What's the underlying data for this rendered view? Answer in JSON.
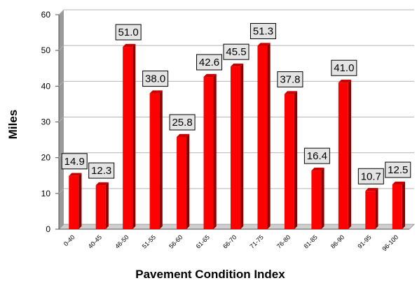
{
  "chart_data": {
    "type": "bar",
    "title": "",
    "xlabel": "Pavement Condition Index",
    "ylabel": "Miles",
    "ylim": [
      0,
      60
    ],
    "yticks": [
      0,
      10,
      20,
      30,
      40,
      50,
      60
    ],
    "grid": true,
    "legend": "none",
    "style": "3d",
    "categories": [
      "0-40",
      "40-45",
      "46-50",
      "51-55",
      "56-60",
      "61-65",
      "66-70",
      "71-75",
      "76-80",
      "81-85",
      "86-90",
      "91-95",
      "96-100"
    ],
    "values": [
      14.9,
      12.3,
      51.0,
      38.0,
      25.8,
      42.6,
      45.5,
      51.3,
      37.8,
      16.4,
      41.0,
      10.7,
      12.5
    ],
    "data_labels": [
      "14.9",
      "12.3",
      "51.0",
      "38.0",
      "25.8",
      "42.6",
      "45.5",
      "51.3",
      "37.8",
      "16.4",
      "41.0",
      "10.7",
      "12.5"
    ],
    "colors": {
      "bar_front": "#ff0000",
      "bar_side": "#8c0000",
      "bar_top": "#c80000",
      "wall": "#9a9a9a",
      "grid": "#b4b4b4",
      "label_box": "#e4e4e4"
    }
  }
}
